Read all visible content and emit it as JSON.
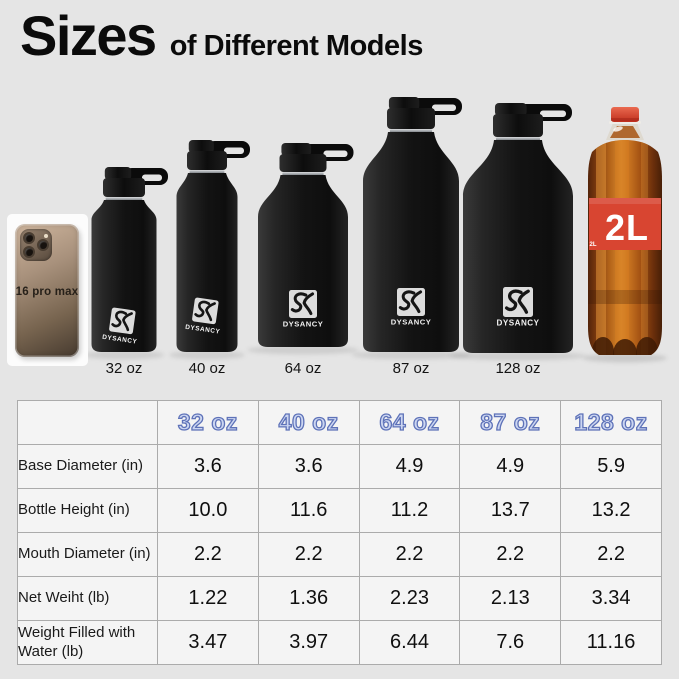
{
  "title": {
    "main": "Sizes",
    "rest": "of Different Models"
  },
  "brand": {
    "name": "DYSANCY"
  },
  "phone": {
    "label": "16 pro max"
  },
  "cola": {
    "label": "2L",
    "small_label": "2L"
  },
  "bottles": {
    "labels": [
      "32 oz",
      "40 oz",
      "64 oz",
      "87 oz",
      "128 oz"
    ]
  },
  "chart_data": {
    "type": "table",
    "title": "Sizes of Different Models",
    "columns": [
      "",
      "32 oz",
      "40 oz",
      "64 oz",
      "87 oz",
      "128 oz"
    ],
    "rows": [
      [
        "Base Diameter (in)",
        "3.6",
        "3.6",
        "4.9",
        "4.9",
        "5.9"
      ],
      [
        "Bottle Height (in)",
        "10.0",
        "11.6",
        "11.2",
        "13.7",
        "13.2"
      ],
      [
        "Mouth Diameter (in)",
        "2.2",
        "2.2",
        "2.2",
        "2.2",
        "2.2"
      ],
      [
        "Net Weiht (lb)",
        "1.22",
        "1.36",
        "2.23",
        "2.13",
        "3.34"
      ],
      [
        "Weight Filled with Water (lb)",
        "3.47",
        "3.97",
        "6.44",
        "7.6",
        "11.16"
      ]
    ]
  },
  "colors": {
    "background": "#e5e5e5",
    "table_cell": "#f4f4f4",
    "table_border": "#ababab",
    "header_fill": "#ccd6f1",
    "header_outline": "#5e72b8",
    "bottle_black": "#141414",
    "cola_red": "#d84531",
    "cola_amber": "#b5651a"
  }
}
